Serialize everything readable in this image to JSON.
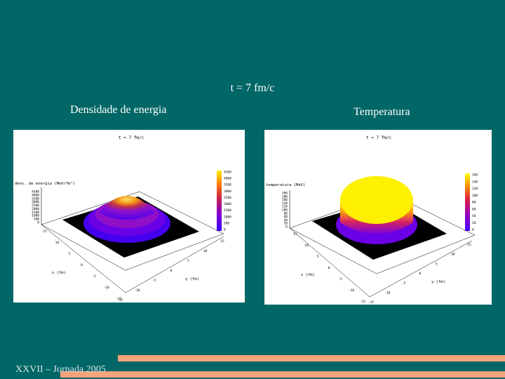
{
  "slide": {
    "title": "t = 7 fm/c",
    "left_caption": "Densidade de energia",
    "right_caption": "Temperatura",
    "footer": "XXVII – Jornada 2005"
  },
  "plot_left": {
    "title": "t = 7 fm/c",
    "zlabel": "dens. de energia (MeV/fm³)",
    "xlabel": "x (fm)",
    "ylabel": "y (fm)",
    "colorbar_ticks": [
      "4500",
      "4000",
      "3500",
      "3000",
      "2500",
      "2000",
      "1500",
      "1000",
      "500",
      "0"
    ],
    "z_ticks": [
      "4500",
      "4000",
      "3500",
      "3000",
      "2500",
      "2000",
      "1500",
      "1000",
      "500",
      "0"
    ],
    "x_ticks": [
      "-15",
      "-10",
      "-5",
      "0",
      "5",
      "10",
      "15"
    ],
    "y_ticks": [
      "-15",
      "-10",
      "-5",
      "0",
      "5",
      "10",
      "15"
    ],
    "colors": {
      "low": "#3300ff",
      "mid": "#cc2288",
      "high": "#ffdd00"
    }
  },
  "plot_right": {
    "title": "t = 7 fm/c",
    "zlabel": "temperatura (MeV)",
    "xlabel": "x (fm)",
    "ylabel": "y (fm)",
    "colorbar_ticks": [
      "160",
      "140",
      "120",
      "100",
      "80",
      "60",
      "40",
      "20",
      "0"
    ],
    "z_ticks": [
      "200",
      "180",
      "160",
      "140",
      "120",
      "100",
      "80",
      "60",
      "40",
      "20",
      "0"
    ],
    "x_ticks": [
      "-15",
      "-10",
      "-5",
      "0",
      "5",
      "10",
      "15"
    ],
    "y_ticks": [
      "-15",
      "-10",
      "-5",
      "0",
      "5",
      "10",
      "15"
    ],
    "colors": {
      "low": "#4400ff",
      "mid": "#dd1166",
      "high": "#ffff00"
    }
  }
}
